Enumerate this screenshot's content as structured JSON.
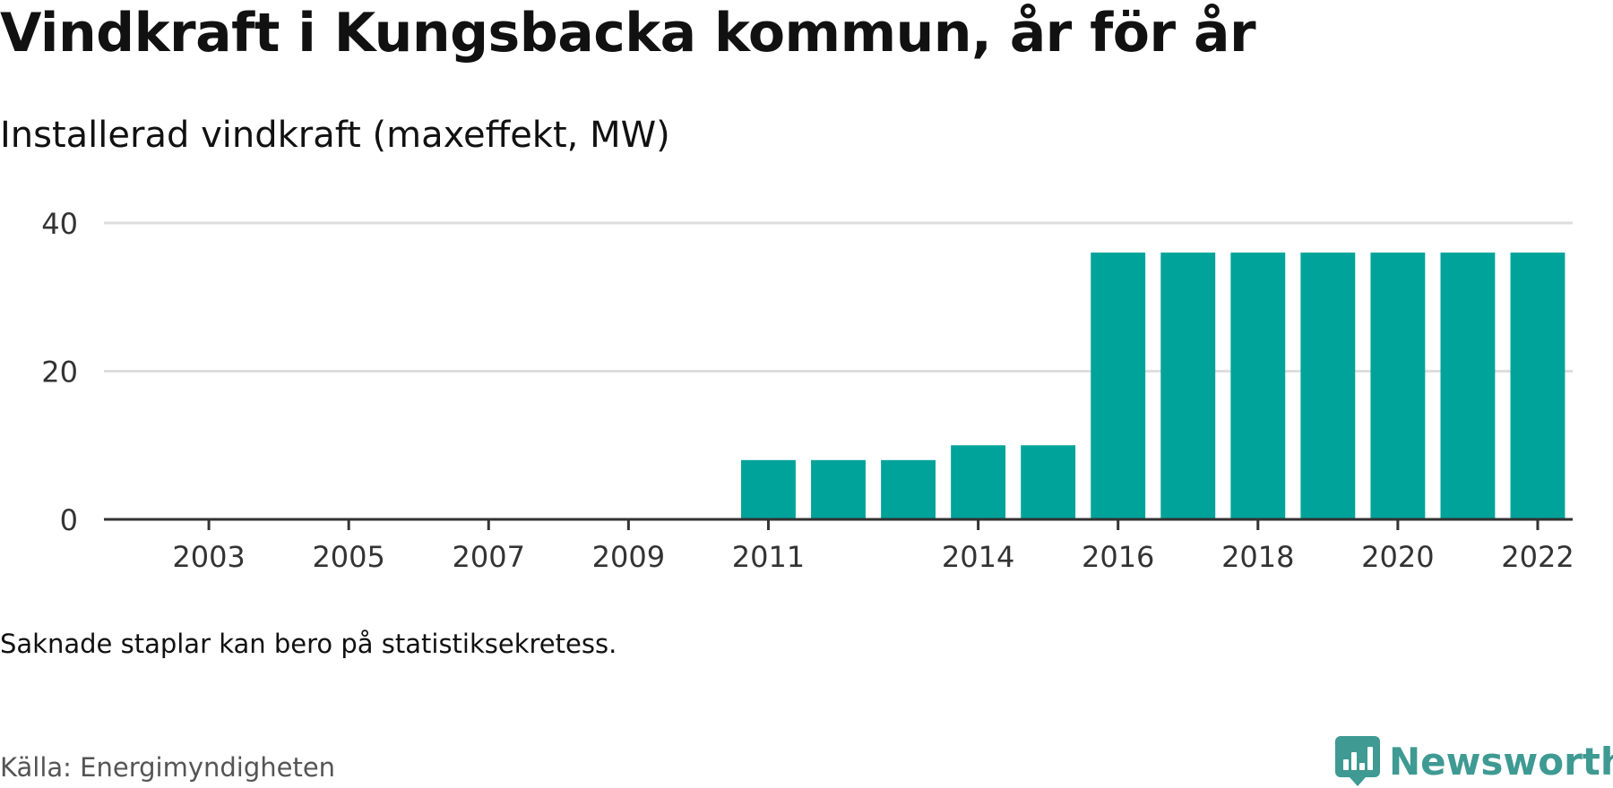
{
  "title": "Vindkraft i Kungsbacka kommun, år för år",
  "subtitle": "Installerad vindkraft (maxeffekt, MW)",
  "note": "Saknade staplar kan bero på statistiksekretess.",
  "source": "Källa: Energimyndigheten",
  "brand": {
    "name": "Newsworthy",
    "icon": "newsworthy-logo-icon",
    "color": "#3e9a92"
  },
  "chart_data": {
    "type": "bar",
    "color": "#00a39a",
    "categories": [
      "2002",
      "2003",
      "2004",
      "2005",
      "2006",
      "2007",
      "2008",
      "2009",
      "2010",
      "2011",
      "2012",
      "2013",
      "2014",
      "2015",
      "2016",
      "2017",
      "2018",
      "2019",
      "2020",
      "2021",
      "2022"
    ],
    "values": [
      null,
      null,
      null,
      null,
      null,
      null,
      null,
      null,
      null,
      8,
      8,
      8,
      10,
      10,
      36,
      36,
      36,
      36,
      36,
      36,
      36
    ],
    "x_tick_labels": [
      "2003",
      "2005",
      "2007",
      "2009",
      "2011",
      "2014",
      "2016",
      "2018",
      "2020",
      "2022"
    ],
    "y_ticks": [
      0,
      20,
      40
    ],
    "ylim": [
      0,
      40
    ],
    "xlabel": "",
    "ylabel": "",
    "grid": true
  }
}
